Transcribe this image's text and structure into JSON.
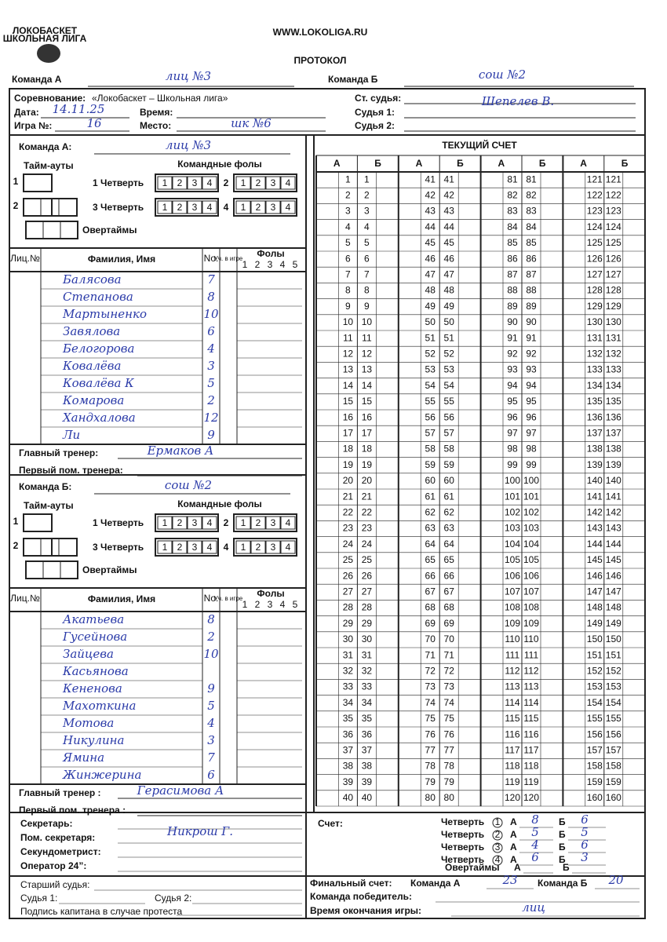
{
  "header": {
    "logo_title": "ЛОКОБАСКЕТ",
    "logo_subtitle": "ШКОЛЬНАЯ ЛИГА",
    "website": "WWW.LOKOLIGA.RU",
    "title": "ПРОТОКОЛ"
  },
  "teams_line": {
    "team_a_label": "Команда А",
    "team_a": "лиц №3",
    "team_b_label": "Команда Б",
    "team_b": "сош №2"
  },
  "info": {
    "competition_label": "Соревнование:",
    "competition": "«Локобаскет – Школьная лига»",
    "date_label": "Дата:",
    "date": "14.11.25",
    "time_label": "Время:",
    "game_label": "Игра №:",
    "game": "16",
    "place_label": "Место:",
    "place": "шк №6",
    "chief_referee_label": "Ст. судья:",
    "chief_referee": "Шепелев В.",
    "referee1_label": "Судья 1:",
    "referee2_label": "Судья 2:"
  },
  "team_a": {
    "label": "Команда А:",
    "name": "лиц №3",
    "timeouts_label": "Тайм-ауты",
    "team_fouls_label": "Командные фолы",
    "timeout_rows": [
      1,
      2
    ],
    "q1_label": "1 Четверть",
    "q2_label": "2",
    "q3_label": "3 Четверть",
    "q4_label": "4",
    "foul_box_numbers": [
      1,
      2,
      3,
      4
    ],
    "overtime_label": "Овертаймы",
    "license_header": "Лиц.№",
    "name_header": "Фамилия, Имя",
    "number_header": "No.",
    "in_game_header": "Уч. в игре",
    "fouls_header": "Фолы",
    "foul_numbers": [
      1,
      2,
      3,
      4,
      5
    ],
    "players": [
      {
        "name": "Балясова",
        "number": 7
      },
      {
        "name": "Степанова",
        "number": 8
      },
      {
        "name": "Мартыненко",
        "number": 10
      },
      {
        "name": "Завялова",
        "number": 6
      },
      {
        "name": "Белогорова",
        "number": 4
      },
      {
        "name": "Ковалёва",
        "number": 3
      },
      {
        "name": "Ковалёва К",
        "number": 5
      },
      {
        "name": "Комарова",
        "number": 2
      },
      {
        "name": "Хандхалова",
        "number": 12
      },
      {
        "name": "Ли",
        "number": 9
      }
    ],
    "coach_label": "Главный тренер:",
    "coach": "Ермаков А",
    "assistant_label": "Первый пом. тренера:"
  },
  "team_b": {
    "label": "Команда Б:",
    "name": "сош №2",
    "timeouts_label": "Тайм-ауты",
    "team_fouls_label": "Командные фолы",
    "timeout_rows": [
      1,
      2
    ],
    "q1_label": "1 Четверть",
    "q2_label": "2",
    "q3_label": "3 Четверть",
    "q4_label": "4",
    "foul_box_numbers": [
      1,
      2,
      3,
      4
    ],
    "overtime_label": "Овертаймы",
    "license_header": "Лиц.№",
    "name_header": "Фамилия, Имя",
    "number_header": "No.",
    "in_game_header": "Уч. в игре",
    "fouls_header": "Фолы",
    "foul_numbers": [
      1,
      2,
      3,
      4,
      5
    ],
    "players": [
      {
        "name": "Акатьева",
        "number": 8
      },
      {
        "name": "Гусейнова",
        "number": 2
      },
      {
        "name": "Зайцева",
        "number": 10
      },
      {
        "name": "Касьянова",
        "number": null
      },
      {
        "name": "Кененова",
        "number": 9
      },
      {
        "name": "Махоткина",
        "number": 5
      },
      {
        "name": "Мотова",
        "number": 4
      },
      {
        "name": "Никулина",
        "number": 3
      },
      {
        "name": "Ямина",
        "number": 7
      },
      {
        "name": "Жинжерина",
        "number": 6
      }
    ],
    "coach_label": "Главный тренер :",
    "coach": "Герасимова А",
    "assistant_label": "Первый пом. тренера :"
  },
  "running_score": {
    "title": "ТЕКУЩИЙ СЧЕТ",
    "col_a": "А",
    "col_b": "Б",
    "numbers": [
      1,
      2,
      3,
      4,
      5,
      6,
      7,
      8,
      9,
      10,
      11,
      12,
      13,
      14,
      15,
      16,
      17,
      18,
      19,
      20,
      21,
      22,
      23,
      24,
      25,
      26,
      27,
      28,
      29,
      30,
      31,
      32,
      33,
      34,
      35,
      36,
      37,
      38,
      39,
      40,
      41,
      42,
      43,
      44,
      45,
      46,
      47,
      48,
      49,
      50,
      51,
      52,
      53,
      54,
      55,
      56,
      57,
      58,
      59,
      60,
      61,
      62,
      63,
      64,
      65,
      66,
      67,
      68,
      69,
      70,
      71,
      72,
      73,
      74,
      75,
      76,
      77,
      78,
      79,
      80,
      81,
      82,
      83,
      84,
      85,
      86,
      87,
      88,
      89,
      90,
      91,
      92,
      93,
      94,
      95,
      96,
      97,
      98,
      99,
      100,
      101,
      102,
      103,
      104,
      105,
      106,
      107,
      108,
      109,
      110,
      111,
      112,
      113,
      114,
      115,
      116,
      117,
      118,
      119,
      120,
      121,
      122,
      123,
      124,
      125,
      126,
      127,
      128,
      129,
      130,
      131,
      132,
      133,
      134,
      135,
      136,
      137,
      138,
      139,
      140,
      141,
      142,
      143,
      144,
      145,
      146,
      147,
      148,
      149,
      150,
      151,
      152,
      153,
      154,
      155,
      156,
      157,
      158,
      159,
      160
    ]
  },
  "officials": {
    "secretary_label": "Секретарь:",
    "secretary": "Никрош Г.",
    "assistant_secretary_label": "Пом. секретаря:",
    "timer_label": "Секундометрист:",
    "operator_label": "Оператор 24”:",
    "senior_referee_label": "Старший судья:",
    "judge1_label": "Судья 1:",
    "judge2_label": "Судья 2:",
    "captain_label": "Подпись капитана в случае протеста"
  },
  "score": {
    "label": "Счет:",
    "quarter_label": "Четверть",
    "a_label": "А",
    "b_label": "Б",
    "quarters": [
      {
        "n": 1,
        "a": 8,
        "b": 6
      },
      {
        "n": 2,
        "a": 5,
        "b": 5
      },
      {
        "n": 3,
        "a": 4,
        "b": 6
      },
      {
        "n": 4,
        "a": 6,
        "b": 3
      }
    ],
    "overtime_label": "Овертаймы",
    "final_label": "Финальный счет:",
    "final_team_a_label": "Команда А",
    "final_a": 23,
    "final_team_b_label": "Команда Б",
    "final_b": 20,
    "winner_label": "Команда победитель:",
    "winner": "лиц",
    "end_time_label": "Время окончания игры:"
  }
}
